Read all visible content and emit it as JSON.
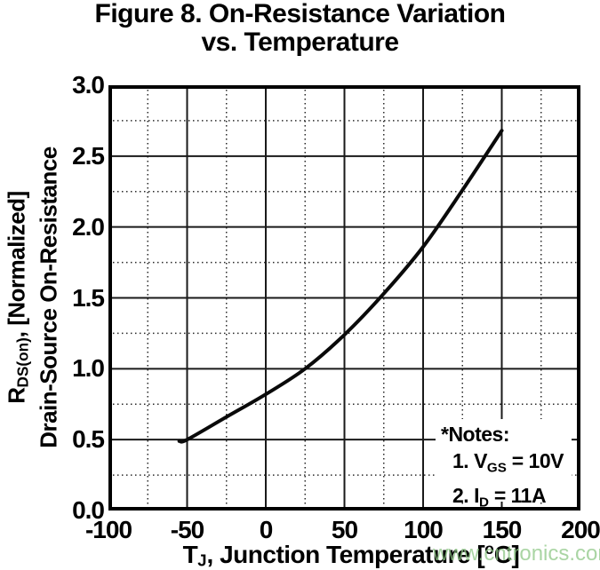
{
  "title": {
    "line1": "Figure 8. On-Resistance Variation",
    "line2": "vs. Temperature"
  },
  "y_axis": {
    "label_line1": {
      "base": "R",
      "sub": "DS(on)",
      "rest": ", [Normalized]"
    },
    "label_line2": "Drain-Source On-Resistance",
    "ticks": [
      "3.0",
      "2.5",
      "2.0",
      "1.5",
      "1.0",
      "0.5",
      "0.0"
    ],
    "tick_values": [
      3.0,
      2.5,
      2.0,
      1.5,
      1.0,
      0.5,
      0.0
    ]
  },
  "x_axis": {
    "label": {
      "base": "T",
      "sub": "J",
      "mid": ", Junction Temperature [",
      "sup": "o",
      "end": "C]"
    },
    "ticks": [
      "-100",
      "-50",
      "0",
      "50",
      "100",
      "150",
      "200"
    ],
    "tick_values": [
      -100,
      -50,
      0,
      50,
      100,
      150,
      200
    ]
  },
  "notes": {
    "header": "*Notes:",
    "item1": {
      "prefix": "1. V",
      "sub": "GS",
      "suffix": " = 10V"
    },
    "item2": {
      "prefix": "2. I",
      "sub": "D",
      "suffix": " = 11A"
    }
  },
  "watermark": "www.cntronics.com",
  "colors": {
    "text": "#000000",
    "curve": "#0a0a0a",
    "grid_major": "#1a1a1a",
    "grid_minor": "#2a2a2a",
    "frame": "#000000",
    "watermark": "rgba(141,199,133,0.75)"
  },
  "chart_data": {
    "type": "line",
    "title": "Figure 8. On-Resistance Variation vs. Temperature",
    "xlabel": "TJ, Junction Temperature [°C]",
    "ylabel": "RDS(on), [Normalized] Drain-Source On-Resistance",
    "xlim": [
      -100,
      200
    ],
    "ylim": [
      0.0,
      3.0
    ],
    "x_major_step": 50,
    "x_minor_step": 25,
    "y_major_step": 0.5,
    "y_minor_step": 0.25,
    "grid": "major solid, minor dotted",
    "legend": "none",
    "series": [
      {
        "name": "RDS(on) normalized vs TJ",
        "x": [
          -55,
          -50,
          -25,
          0,
          25,
          50,
          75,
          100,
          125,
          150
        ],
        "y": [
          0.49,
          0.5,
          0.66,
          0.82,
          1.0,
          1.24,
          1.53,
          1.86,
          2.26,
          2.68
        ]
      }
    ],
    "annotations": [
      "*Notes:",
      "1. VGS = 10V",
      "2. ID = 11A"
    ]
  }
}
